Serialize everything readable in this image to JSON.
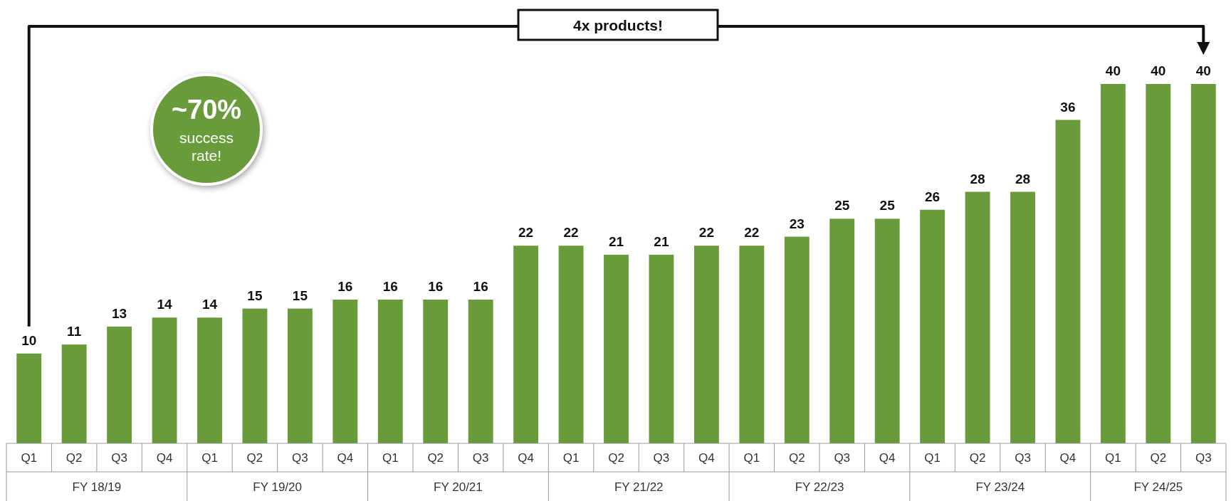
{
  "chart_data": {
    "type": "bar",
    "categories": [
      "Q1",
      "Q2",
      "Q3",
      "Q4",
      "Q1",
      "Q2",
      "Q3",
      "Q4",
      "Q1",
      "Q2",
      "Q3",
      "Q4",
      "Q1",
      "Q2",
      "Q3",
      "Q4",
      "Q1",
      "Q2",
      "Q3",
      "Q4",
      "Q1",
      "Q2",
      "Q3",
      "Q4",
      "Q1",
      "Q2",
      "Q3"
    ],
    "values": [
      10,
      11,
      13,
      14,
      14,
      15,
      15,
      16,
      16,
      16,
      16,
      22,
      22,
      21,
      21,
      22,
      22,
      23,
      25,
      25,
      26,
      28,
      28,
      36,
      40,
      40,
      40
    ],
    "color": "#6a9b3b",
    "data_labels": true,
    "annotations": [
      "4x products!",
      "~70%",
      "success rate!",
      "FY 18/19",
      "FY 19/20",
      "FY 20/21",
      "FY 21/22",
      "FY 22/23",
      "FY 23/24",
      "FY 24/25"
    ]
  }
}
